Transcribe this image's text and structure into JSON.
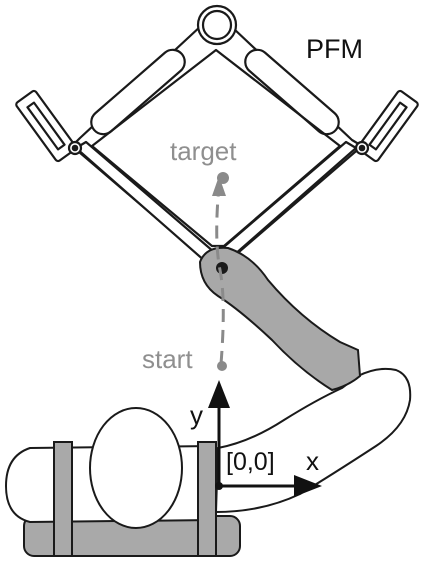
{
  "labels": {
    "device": "PFM",
    "target": "target",
    "start": "start",
    "origin": "[0,0]",
    "x_axis": "x",
    "y_axis": "y"
  },
  "colors": {
    "outline": "#1a1a1a",
    "arm_gray": "#a8a8a8",
    "path_gray": "#8a8a8a",
    "label_gray": "#8f8f8f",
    "torso_gray": "#a9a9a9"
  }
}
